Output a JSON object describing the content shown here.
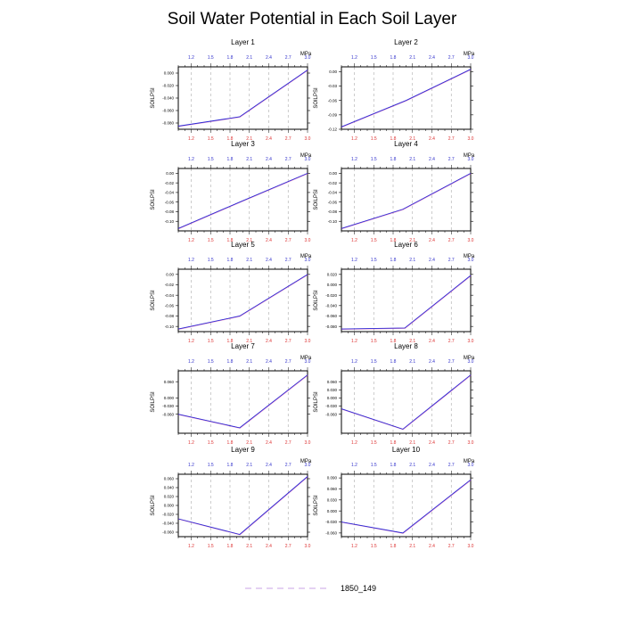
{
  "chart_data": {
    "type": "line",
    "title": "Soil Water Potential in Each Soil Layer",
    "ylabel": "SOILPSI",
    "top_axis_unit": "MPa",
    "x_ticks": [
      "1.2",
      "1.5",
      "1.8",
      "2.1",
      "2.4",
      "2.7",
      "3.0"
    ],
    "x_tick_values": [
      1.2,
      1.5,
      1.8,
      2.1,
      2.4,
      2.7,
      3.0
    ],
    "xlim": [
      1.0,
      3.0
    ],
    "gridlines": "vertical-dashed",
    "legend": [
      {
        "label": "1850_149",
        "style": "dashed",
        "color": "#c9a3e6"
      }
    ],
    "colors": {
      "line": "#2b2bd6",
      "line_overlay": "#e040a0",
      "top_ticks": "#3333cc",
      "bottom_ticks": "#dd3333",
      "grid": "#aaaaaa"
    },
    "panels": [
      {
        "title": "Layer 1",
        "ylim": [
          -0.09,
          0.01
        ],
        "y_ticks": [
          "0.000",
          "-0.020",
          "-0.040",
          "-0.060",
          "-0.080"
        ],
        "y_tick_values": [
          0.0,
          -0.02,
          -0.04,
          -0.06,
          -0.08
        ],
        "series": [
          {
            "x": [
              1.0,
              1.95,
              3.0
            ],
            "y": [
              -0.085,
              -0.07,
              0.005
            ]
          }
        ]
      },
      {
        "title": "Layer 2",
        "ylim": [
          -0.12,
          0.01
        ],
        "y_ticks": [
          "0.00",
          "-0.03",
          "-0.06",
          "-0.09",
          "-0.12"
        ],
        "y_tick_values": [
          0.0,
          -0.03,
          -0.06,
          -0.09,
          -0.12
        ],
        "series": [
          {
            "x": [
              1.0,
              2.0,
              3.0
            ],
            "y": [
              -0.115,
              -0.06,
              0.005
            ]
          }
        ]
      },
      {
        "title": "Layer 3",
        "ylim": [
          -0.12,
          0.01
        ],
        "y_ticks": [
          "0.00",
          "-0.02",
          "-0.04",
          "-0.06",
          "-0.08",
          "-0.10"
        ],
        "y_tick_values": [
          0.0,
          -0.02,
          -0.04,
          -0.06,
          -0.08,
          -0.1
        ],
        "series": [
          {
            "x": [
              1.0,
              1.95,
              3.0
            ],
            "y": [
              -0.115,
              -0.06,
              0.0
            ]
          }
        ]
      },
      {
        "title": "Layer 4",
        "ylim": [
          -0.12,
          0.01
        ],
        "y_ticks": [
          "0.00",
          "-0.02",
          "-0.04",
          "-0.06",
          "-0.08",
          "-0.10"
        ],
        "y_tick_values": [
          0.0,
          -0.02,
          -0.04,
          -0.06,
          -0.08,
          -0.1
        ],
        "series": [
          {
            "x": [
              1.0,
              1.95,
              3.0
            ],
            "y": [
              -0.115,
              -0.075,
              0.0
            ]
          }
        ]
      },
      {
        "title": "Layer 5",
        "ylim": [
          -0.11,
          0.01
        ],
        "y_ticks": [
          "0.00",
          "-0.02",
          "-0.04",
          "-0.06",
          "-0.08",
          "-0.10"
        ],
        "y_tick_values": [
          0.0,
          -0.02,
          -0.04,
          -0.06,
          -0.08,
          -0.1
        ],
        "series": [
          {
            "x": [
              1.0,
              1.95,
              3.0
            ],
            "y": [
              -0.105,
              -0.08,
              0.0
            ]
          }
        ]
      },
      {
        "title": "Layer 6",
        "ylim": [
          -0.09,
          0.03
        ],
        "y_ticks": [
          "0.020",
          "0.000",
          "-0.020",
          "-0.040",
          "-0.060",
          "-0.080"
        ],
        "y_tick_values": [
          0.02,
          0.0,
          -0.02,
          -0.04,
          -0.06,
          -0.08
        ],
        "series": [
          {
            "x": [
              1.0,
              1.98,
              3.0
            ],
            "y": [
              -0.085,
              -0.083,
              0.018
            ]
          }
        ]
      },
      {
        "title": "Layer 7",
        "ylim": [
          -0.13,
          0.1
        ],
        "y_ticks": [
          "0.060",
          "0.000",
          "-0.030",
          "-0.060"
        ],
        "y_tick_values": [
          0.06,
          0.0,
          -0.03,
          -0.06
        ],
        "series": [
          {
            "x": [
              1.0,
              1.95,
              3.0
            ],
            "y": [
              -0.06,
              -0.11,
              0.085
            ]
          }
        ]
      },
      {
        "title": "Layer 8",
        "ylim": [
          -0.13,
          0.1
        ],
        "y_ticks": [
          "0.060",
          "0.030",
          "0.000",
          "-0.030",
          "-0.060"
        ],
        "y_tick_values": [
          0.06,
          0.03,
          0.0,
          -0.03,
          -0.06
        ],
        "series": [
          {
            "x": [
              1.0,
              1.95,
              3.0
            ],
            "y": [
              -0.04,
              -0.115,
              0.085
            ]
          }
        ]
      },
      {
        "title": "Layer 9",
        "ylim": [
          -0.07,
          0.07
        ],
        "y_ticks": [
          "0.060",
          "0.040",
          "0.020",
          "0.000",
          "-0.020",
          "-0.040",
          "-0.060"
        ],
        "y_tick_values": [
          0.06,
          0.04,
          0.02,
          0.0,
          -0.02,
          -0.04,
          -0.06
        ],
        "series": [
          {
            "x": [
              1.0,
              1.95,
              3.0
            ],
            "y": [
              -0.03,
              -0.065,
              0.065
            ]
          }
        ]
      },
      {
        "title": "Layer 10",
        "ylim": [
          -0.07,
          0.1
        ],
        "y_ticks": [
          "0.090",
          "0.060",
          "0.030",
          "0.000",
          "-0.030",
          "-0.060"
        ],
        "y_tick_values": [
          0.09,
          0.06,
          0.03,
          0.0,
          -0.03,
          -0.06
        ],
        "series": [
          {
            "x": [
              1.0,
              1.95,
              3.0
            ],
            "y": [
              -0.03,
              -0.06,
              0.085
            ]
          }
        ]
      }
    ]
  }
}
